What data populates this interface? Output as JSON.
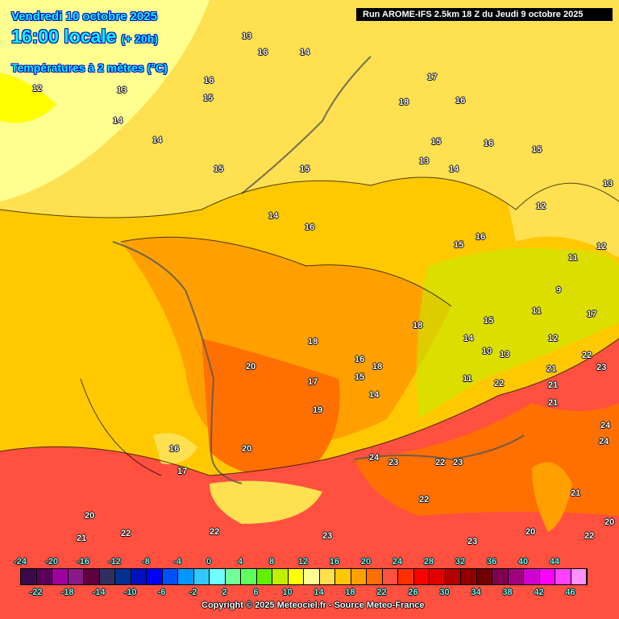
{
  "header": {
    "date": "Vendredi 10 octobre 2025",
    "time": "16:00 locale",
    "lead": "(+ 20h)",
    "variable": "Températures à 2 mètres (°C)",
    "run": "Run AROME-IFS 2.5km 18 Z du Jeudi 9 octobre 2025"
  },
  "colorbar": {
    "colors": [
      "#3a0a4a",
      "#5a005a",
      "#a000a0",
      "#8a1a8a",
      "#600040",
      "#303060",
      "#003090",
      "#0010c0",
      "#0000ff",
      "#0050ff",
      "#0098ff",
      "#30c8ff",
      "#70ffff",
      "#70ff98",
      "#60ff60",
      "#60f000",
      "#c0f000",
      "#ffff00",
      "#ffff90",
      "#ffe050",
      "#ffc800",
      "#ffa000",
      "#ff7000",
      "#ff5040",
      "#ff3000",
      "#ff0000",
      "#e00000",
      "#b00000",
      "#900000",
      "#700000",
      "#800050",
      "#a00080",
      "#d000d0",
      "#ff00ff",
      "#ff40ff",
      "#ff90ff"
    ],
    "top_labels": [
      "-24",
      "-20",
      "-16",
      "-12",
      "-8",
      "-4",
      "0",
      "4",
      "8",
      "12",
      "16",
      "20",
      "24",
      "28",
      "32",
      "36",
      "40",
      "44"
    ],
    "bottom_labels": [
      "-22",
      "-18",
      "-14",
      "-10",
      "-6",
      "-2",
      "2",
      "6",
      "10",
      "14",
      "18",
      "22",
      "26",
      "30",
      "34",
      "38",
      "42",
      "46"
    ]
  },
  "contour_labels": [
    "13",
    "16",
    "14",
    "12",
    "13",
    "16",
    "15",
    "14",
    "14",
    "15",
    "17",
    "18",
    "16",
    "15",
    "13",
    "14",
    "15",
    "16",
    "15",
    "16",
    "14",
    "12",
    "11",
    "12",
    "13",
    "15",
    "16",
    "18",
    "15",
    "14",
    "12",
    "10",
    "9",
    "11",
    "17",
    "18",
    "17",
    "20",
    "18",
    "19",
    "16",
    "15",
    "14",
    "11",
    "13",
    "22",
    "21",
    "21",
    "23",
    "22",
    "24",
    "20",
    "16",
    "17",
    "24",
    "23",
    "22",
    "23",
    "22",
    "20",
    "21",
    "22",
    "23",
    "23",
    "21",
    "20",
    "20",
    "22",
    "24",
    "22",
    "21"
  ],
  "copyright": "Copyright © 2025 Meteociel.fr - Source Meteo-France"
}
